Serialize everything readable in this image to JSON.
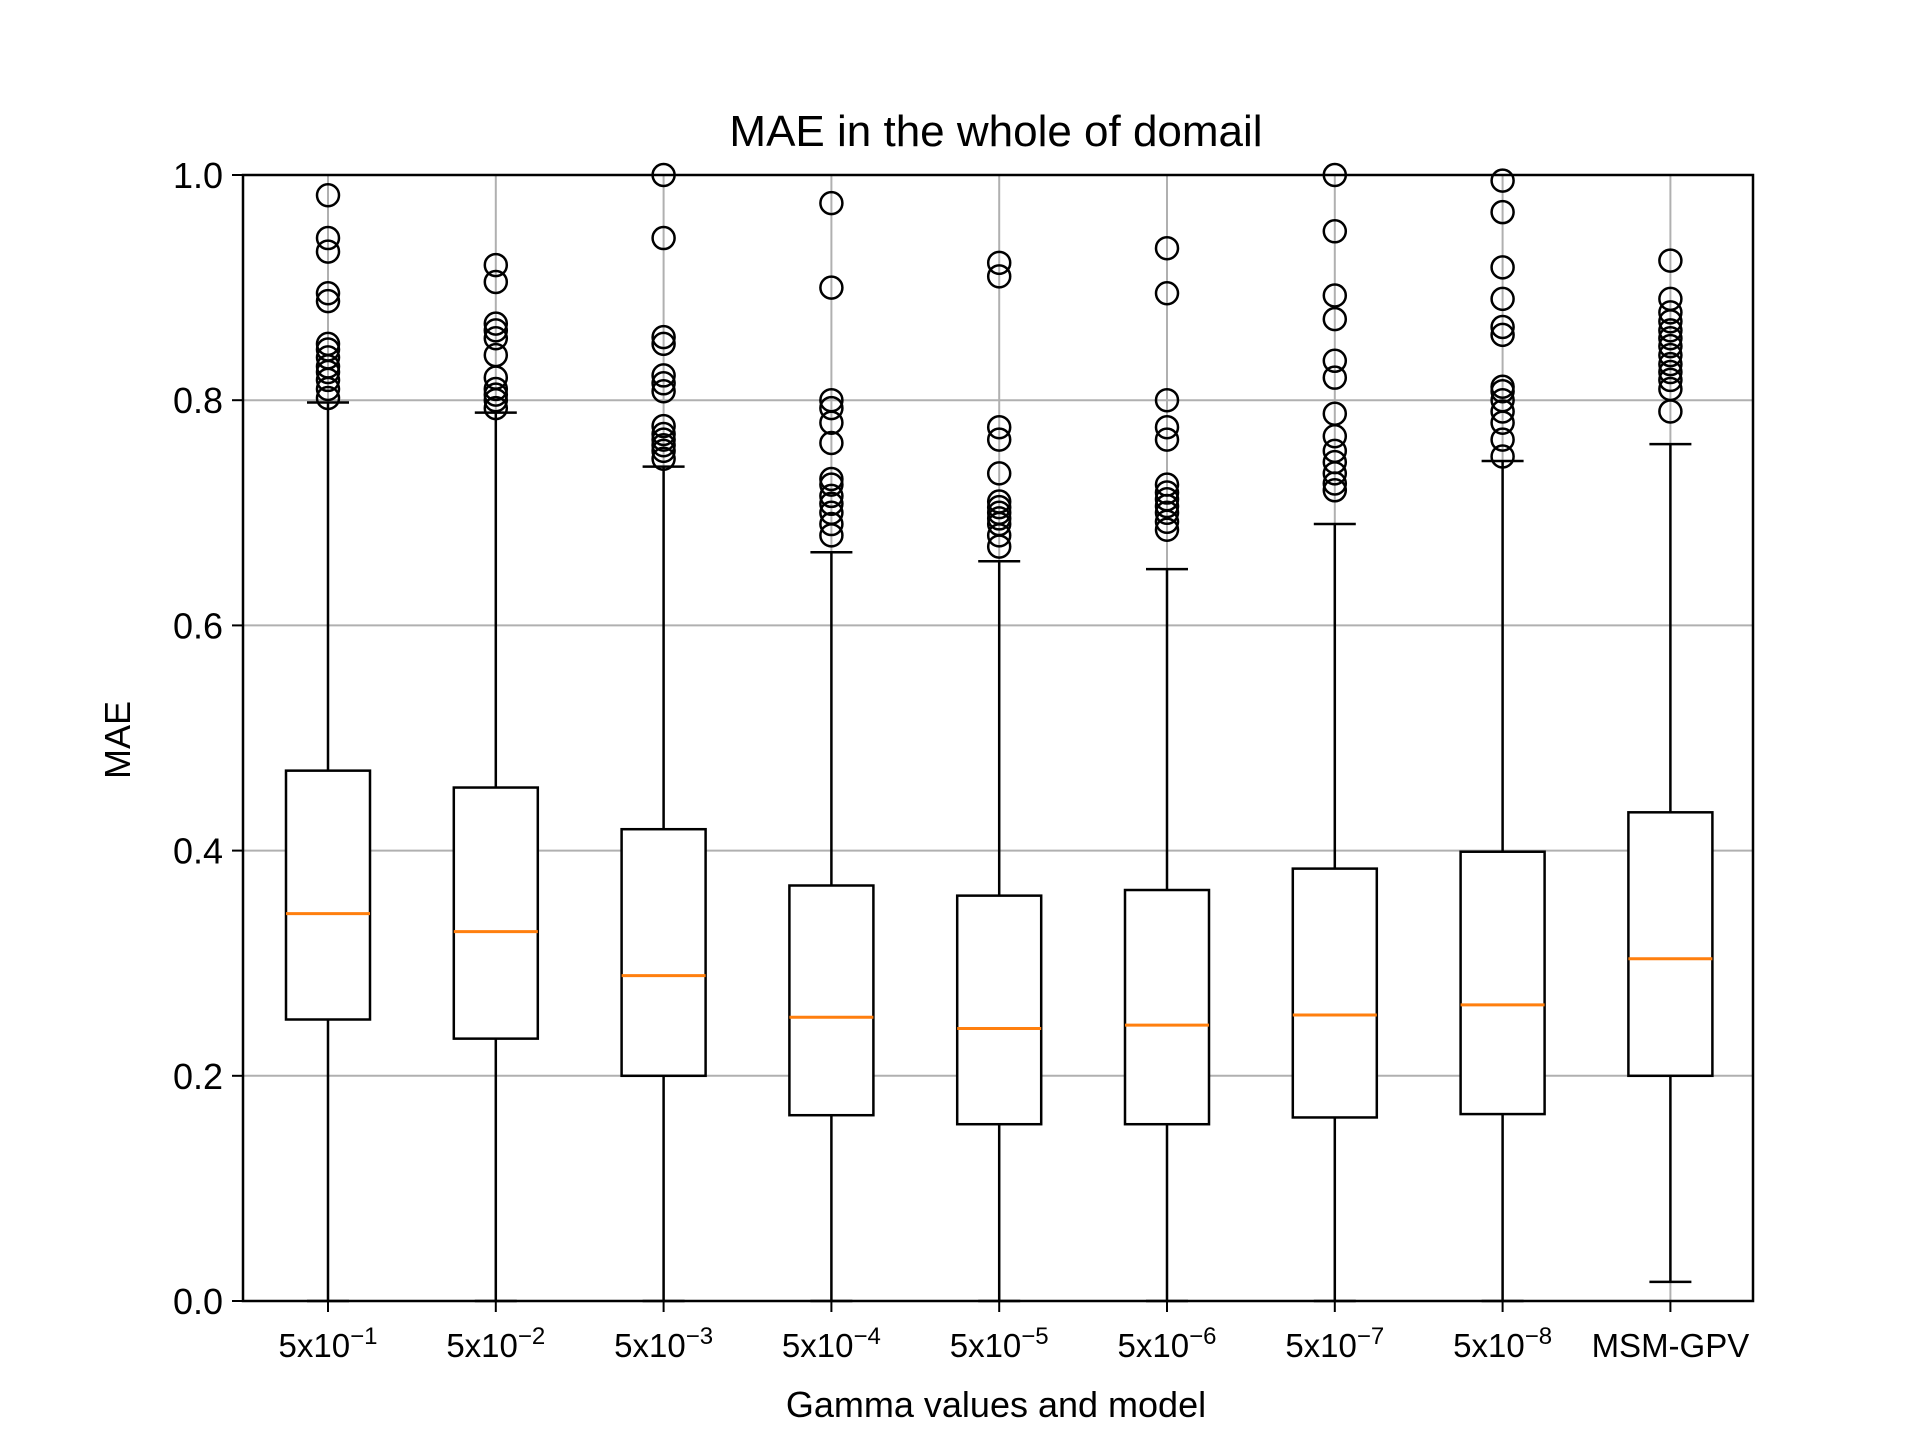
{
  "chart_data": {
    "type": "boxplot",
    "title": "MAE in the whole of domail",
    "xlabel": "Gamma values and model",
    "ylabel": "MAE",
    "ylim": [
      0.0,
      1.0
    ],
    "yticks": [
      "0.0",
      "0.2",
      "0.4",
      "0.6",
      "0.8",
      "1.0"
    ],
    "grid": true,
    "categories": [
      {
        "base": "5x10",
        "exp": "−1"
      },
      {
        "base": "5x10",
        "exp": "−2"
      },
      {
        "base": "5x10",
        "exp": "−3"
      },
      {
        "base": "5x10",
        "exp": "−4"
      },
      {
        "base": "5x10",
        "exp": "−5"
      },
      {
        "base": "5x10",
        "exp": "−6"
      },
      {
        "base": "5x10",
        "exp": "−7"
      },
      {
        "base": "5x10",
        "exp": "−8"
      },
      {
        "base": "MSM-GPV",
        "exp": ""
      }
    ],
    "boxes": [
      {
        "whislo": 0.0,
        "q1": 0.25,
        "med": 0.344,
        "q3": 0.471,
        "whishi": 0.798,
        "fliers": [
          0.802,
          0.81,
          0.818,
          0.825,
          0.83,
          0.838,
          0.845,
          0.85,
          0.888,
          0.895,
          0.932,
          0.944,
          0.982
        ]
      },
      {
        "whislo": 0.0,
        "q1": 0.233,
        "med": 0.328,
        "q3": 0.456,
        "whishi": 0.789,
        "fliers": [
          0.793,
          0.8,
          0.805,
          0.81,
          0.82,
          0.84,
          0.855,
          0.862,
          0.868,
          0.905,
          0.92
        ]
      },
      {
        "whislo": 0.0,
        "q1": 0.2,
        "med": 0.289,
        "q3": 0.419,
        "whishi": 0.741,
        "fliers": [
          0.748,
          0.755,
          0.76,
          0.765,
          0.77,
          0.777,
          0.808,
          0.815,
          0.822,
          0.85,
          0.856,
          0.944,
          1.0
        ]
      },
      {
        "whislo": 0.0,
        "q1": 0.165,
        "med": 0.252,
        "q3": 0.369,
        "whishi": 0.665,
        "fliers": [
          0.68,
          0.69,
          0.7,
          0.708,
          0.715,
          0.725,
          0.73,
          0.762,
          0.78,
          0.793,
          0.8,
          0.9,
          0.975
        ]
      },
      {
        "whislo": 0.0,
        "q1": 0.157,
        "med": 0.242,
        "q3": 0.36,
        "whishi": 0.657,
        "fliers": [
          0.67,
          0.68,
          0.69,
          0.695,
          0.7,
          0.705,
          0.71,
          0.735,
          0.765,
          0.776,
          0.91,
          0.922
        ]
      },
      {
        "whislo": 0.0,
        "q1": 0.157,
        "med": 0.245,
        "q3": 0.365,
        "whishi": 0.65,
        "fliers": [
          0.685,
          0.692,
          0.7,
          0.706,
          0.712,
          0.718,
          0.725,
          0.765,
          0.776,
          0.8,
          0.895,
          0.935
        ]
      },
      {
        "whislo": 0.0,
        "q1": 0.163,
        "med": 0.254,
        "q3": 0.384,
        "whishi": 0.69,
        "fliers": [
          0.72,
          0.726,
          0.735,
          0.745,
          0.755,
          0.768,
          0.788,
          0.82,
          0.835,
          0.872,
          0.893,
          0.95,
          1.0
        ]
      },
      {
        "whislo": 0.0,
        "q1": 0.166,
        "med": 0.263,
        "q3": 0.399,
        "whishi": 0.746,
        "fliers": [
          0.75,
          0.765,
          0.78,
          0.79,
          0.8,
          0.808,
          0.812,
          0.858,
          0.865,
          0.89,
          0.918,
          0.967,
          0.995
        ]
      },
      {
        "whislo": 0.017,
        "q1": 0.2,
        "med": 0.304,
        "q3": 0.434,
        "whishi": 0.761,
        "fliers": [
          0.79,
          0.81,
          0.818,
          0.825,
          0.832,
          0.84,
          0.848,
          0.855,
          0.862,
          0.87,
          0.878,
          0.89,
          0.924
        ]
      }
    ],
    "colors": {
      "box": "#000000",
      "median": "#ff7f0e",
      "grid": "#b0b0b0",
      "flier": "#000000"
    }
  }
}
